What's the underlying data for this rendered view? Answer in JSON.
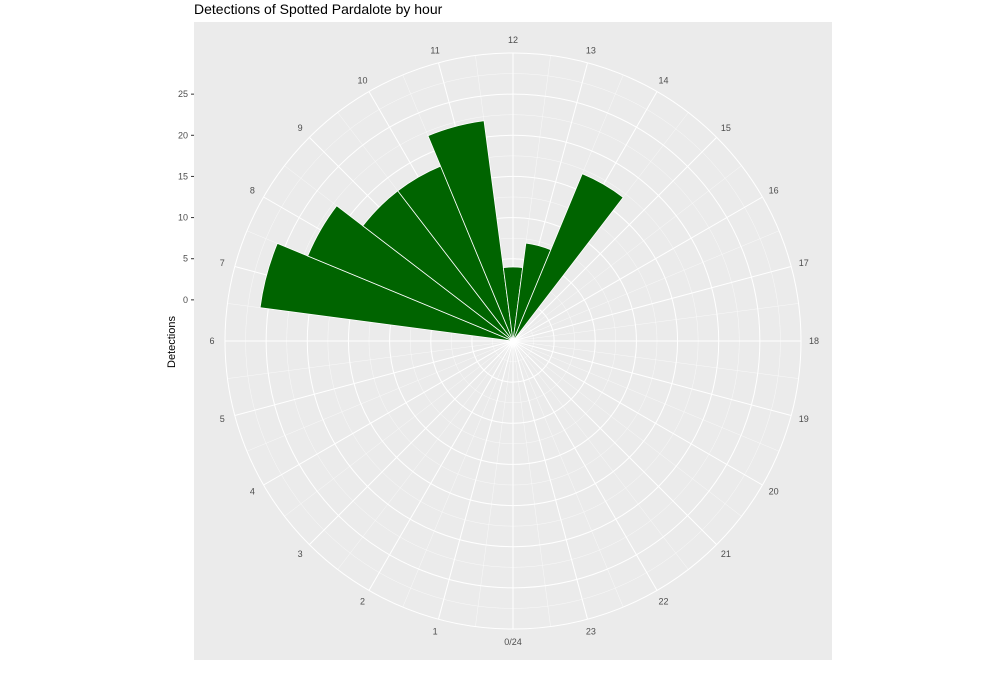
{
  "chart_data": {
    "type": "bar",
    "coord": "polar",
    "title": "Detections of Spotted Pardalote by hour",
    "ylabel": "Detections",
    "xlabel": "",
    "categories": [
      0,
      1,
      2,
      3,
      4,
      5,
      6,
      7,
      8,
      9,
      10,
      11,
      12,
      13,
      14,
      15,
      16,
      17,
      18,
      19,
      20,
      21,
      22,
      23
    ],
    "values": [
      0,
      0,
      0,
      0,
      0,
      0,
      0,
      26,
      22,
      18,
      18,
      22,
      4,
      7,
      17,
      0,
      0,
      0,
      0,
      0,
      0,
      0,
      0,
      0
    ],
    "x_tick_labels": [
      "0/24",
      "1",
      "2",
      "3",
      "4",
      "5",
      "6",
      "7",
      "8",
      "9",
      "10",
      "11",
      "12",
      "13",
      "14",
      "15",
      "16",
      "17",
      "18",
      "19",
      "20",
      "21",
      "22",
      "23"
    ],
    "y_ticks": [
      0,
      5,
      10,
      15,
      20,
      25
    ],
    "ylim": [
      -5,
      30
    ],
    "grid": true,
    "legend": "none",
    "bar_color": "#006400",
    "panel_color": "#ebebeb",
    "grid_color": "#ffffff"
  }
}
